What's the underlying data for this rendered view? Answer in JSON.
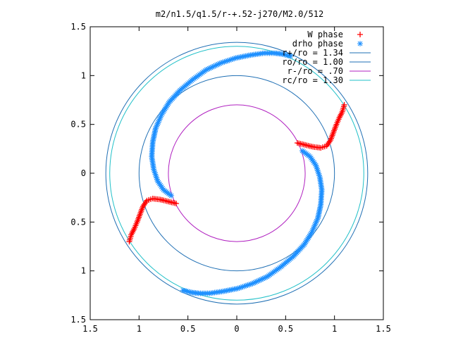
{
  "chart_data": {
    "type": "scatter",
    "title": "m2/n1.5/q1.5/r-+.52-j270/M2.0/512",
    "xlim": [
      -1.5,
      1.5
    ],
    "ylim": [
      -1.5,
      1.5
    ],
    "x_ticks": [
      -1.5,
      -1,
      -0.5,
      0,
      0.5,
      1,
      1.5
    ],
    "y_ticks": [
      -1.5,
      -1,
      -0.5,
      0,
      0.5,
      1,
      1.5
    ],
    "x_tick_labels": [
      "1.5",
      "1",
      "0.5",
      "0",
      "0.5",
      "1",
      "1.5"
    ],
    "y_tick_labels": [
      "1.5",
      "1",
      "0.5",
      "0",
      "0.5",
      "1",
      "1.5"
    ],
    "grid": false,
    "legend_position": "top-right",
    "series": [
      {
        "name": "W phase",
        "kind": "points",
        "marker": "+",
        "color": "#ff0000",
        "points": [
          [
            0.62,
            0.31
          ],
          [
            0.7,
            0.29
          ],
          [
            0.78,
            0.27
          ],
          [
            0.86,
            0.26
          ],
          [
            0.92,
            0.28
          ],
          [
            0.96,
            0.34
          ],
          [
            0.99,
            0.42
          ],
          [
            1.02,
            0.5
          ],
          [
            1.05,
            0.57
          ],
          [
            1.08,
            0.63
          ],
          [
            1.1,
            0.7
          ],
          [
            -0.62,
            -0.31
          ],
          [
            -0.7,
            -0.29
          ],
          [
            -0.78,
            -0.27
          ],
          [
            -0.86,
            -0.26
          ],
          [
            -0.92,
            -0.28
          ],
          [
            -0.96,
            -0.34
          ],
          [
            -0.99,
            -0.42
          ],
          [
            -1.02,
            -0.5
          ],
          [
            -1.05,
            -0.57
          ],
          [
            -1.08,
            -0.63
          ],
          [
            -1.1,
            -0.7
          ]
        ]
      },
      {
        "name": "drho phase",
        "kind": "points",
        "marker": "*",
        "color": "#1e90ff",
        "points": [
          [
            0.67,
            0.23
          ],
          [
            0.75,
            0.17
          ],
          [
            0.81,
            0.08
          ],
          [
            0.85,
            -0.04
          ],
          [
            0.87,
            -0.17
          ],
          [
            0.86,
            -0.32
          ],
          [
            0.83,
            -0.46
          ],
          [
            0.77,
            -0.6
          ],
          [
            0.69,
            -0.73
          ],
          [
            0.58,
            -0.85
          ],
          [
            0.45,
            -0.96
          ],
          [
            0.31,
            -1.06
          ],
          [
            0.16,
            -1.13
          ],
          [
            0.01,
            -1.18
          ],
          [
            -0.14,
            -1.21
          ],
          [
            -0.28,
            -1.23
          ],
          [
            -0.39,
            -1.23
          ],
          [
            -0.47,
            -1.22
          ],
          [
            -0.55,
            -1.2
          ],
          [
            -0.67,
            -0.23
          ],
          [
            -0.75,
            -0.17
          ],
          [
            -0.81,
            -0.08
          ],
          [
            -0.85,
            0.04
          ],
          [
            -0.87,
            0.17
          ],
          [
            -0.86,
            0.32
          ],
          [
            -0.83,
            0.46
          ],
          [
            -0.77,
            0.6
          ],
          [
            -0.69,
            0.73
          ],
          [
            -0.58,
            0.85
          ],
          [
            -0.45,
            0.96
          ],
          [
            -0.31,
            1.06
          ],
          [
            -0.16,
            1.13
          ],
          [
            -0.01,
            1.18
          ],
          [
            0.14,
            1.21
          ],
          [
            0.28,
            1.23
          ],
          [
            0.39,
            1.23
          ],
          [
            0.47,
            1.22
          ],
          [
            0.55,
            1.2
          ]
        ]
      },
      {
        "name": "r+/ro = 1.34",
        "kind": "circle",
        "radius": 1.34,
        "color": "#1f6fb4"
      },
      {
        "name": "ro/ro = 1.00",
        "kind": "circle",
        "radius": 1.0,
        "color": "#1f6fb4"
      },
      {
        "name": "r-/ro =  .70",
        "kind": "circle",
        "radius": 0.7,
        "color": "#b020c0"
      },
      {
        "name": "rc/ro = 1.30",
        "kind": "circle",
        "radius": 1.3,
        "color": "#20c0c8"
      }
    ]
  }
}
